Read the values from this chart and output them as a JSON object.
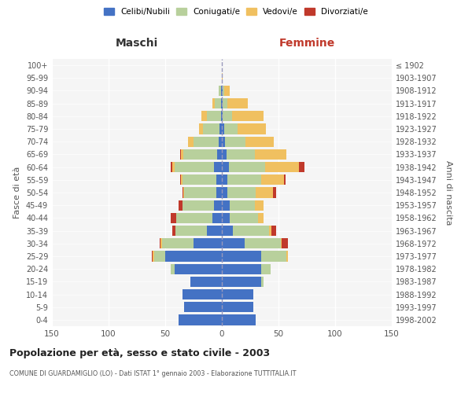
{
  "age_groups": [
    "0-4",
    "5-9",
    "10-14",
    "15-19",
    "20-24",
    "25-29",
    "30-34",
    "35-39",
    "40-44",
    "45-49",
    "50-54",
    "55-59",
    "60-64",
    "65-69",
    "70-74",
    "75-79",
    "80-84",
    "85-89",
    "90-94",
    "95-99",
    "100+"
  ],
  "birth_years": [
    "1998-2002",
    "1993-1997",
    "1988-1992",
    "1983-1987",
    "1978-1982",
    "1973-1977",
    "1968-1972",
    "1963-1967",
    "1958-1962",
    "1953-1957",
    "1948-1952",
    "1943-1947",
    "1938-1942",
    "1933-1937",
    "1928-1932",
    "1923-1927",
    "1918-1922",
    "1913-1917",
    "1908-1912",
    "1903-1907",
    "≤ 1902"
  ],
  "male": {
    "celibi": [
      38,
      33,
      35,
      28,
      42,
      50,
      25,
      13,
      8,
      7,
      5,
      5,
      7,
      4,
      3,
      2,
      1,
      1,
      1,
      0,
      0
    ],
    "coniugati": [
      0,
      0,
      0,
      0,
      3,
      10,
      28,
      28,
      32,
      28,
      28,
      30,
      35,
      30,
      22,
      15,
      12,
      5,
      2,
      0,
      0
    ],
    "vedovi": [
      0,
      0,
      0,
      0,
      0,
      1,
      1,
      0,
      0,
      0,
      1,
      1,
      2,
      2,
      5,
      3,
      5,
      2,
      0,
      0,
      0
    ],
    "divorziati": [
      0,
      0,
      0,
      0,
      0,
      1,
      1,
      3,
      5,
      3,
      1,
      1,
      1,
      1,
      0,
      0,
      0,
      0,
      0,
      0,
      0
    ]
  },
  "female": {
    "nubili": [
      30,
      28,
      28,
      35,
      35,
      35,
      20,
      10,
      7,
      7,
      5,
      5,
      6,
      4,
      3,
      2,
      1,
      1,
      1,
      0,
      0
    ],
    "coniugate": [
      0,
      0,
      0,
      2,
      8,
      22,
      32,
      32,
      25,
      22,
      25,
      30,
      32,
      25,
      18,
      12,
      8,
      4,
      1,
      0,
      0
    ],
    "vedove": [
      0,
      0,
      0,
      0,
      0,
      1,
      1,
      2,
      5,
      8,
      15,
      20,
      30,
      28,
      25,
      25,
      28,
      18,
      5,
      1,
      0
    ],
    "divorziate": [
      0,
      0,
      0,
      0,
      0,
      0,
      5,
      4,
      0,
      0,
      3,
      1,
      5,
      0,
      0,
      0,
      0,
      0,
      0,
      0,
      0
    ]
  },
  "colors": {
    "celibi_nubili": "#4472c4",
    "coniugati": "#b8d09c",
    "vedovi": "#f0c060",
    "divorziati": "#c0392b"
  },
  "title": "Popolazione per età, sesso e stato civile - 2003",
  "subtitle": "COMUNE DI GUARDAMIGLIO (LO) - Dati ISTAT 1° gennaio 2003 - Elaborazione TUTTITALIA.IT",
  "xlabel_left": "Maschi",
  "xlabel_right": "Femmine",
  "ylabel_left": "Fasce di età",
  "ylabel_right": "Anni di nascita",
  "xlim": 150,
  "legend_labels": [
    "Celibi/Nubili",
    "Coniugati/e",
    "Vedovi/e",
    "Divorziati/e"
  ]
}
